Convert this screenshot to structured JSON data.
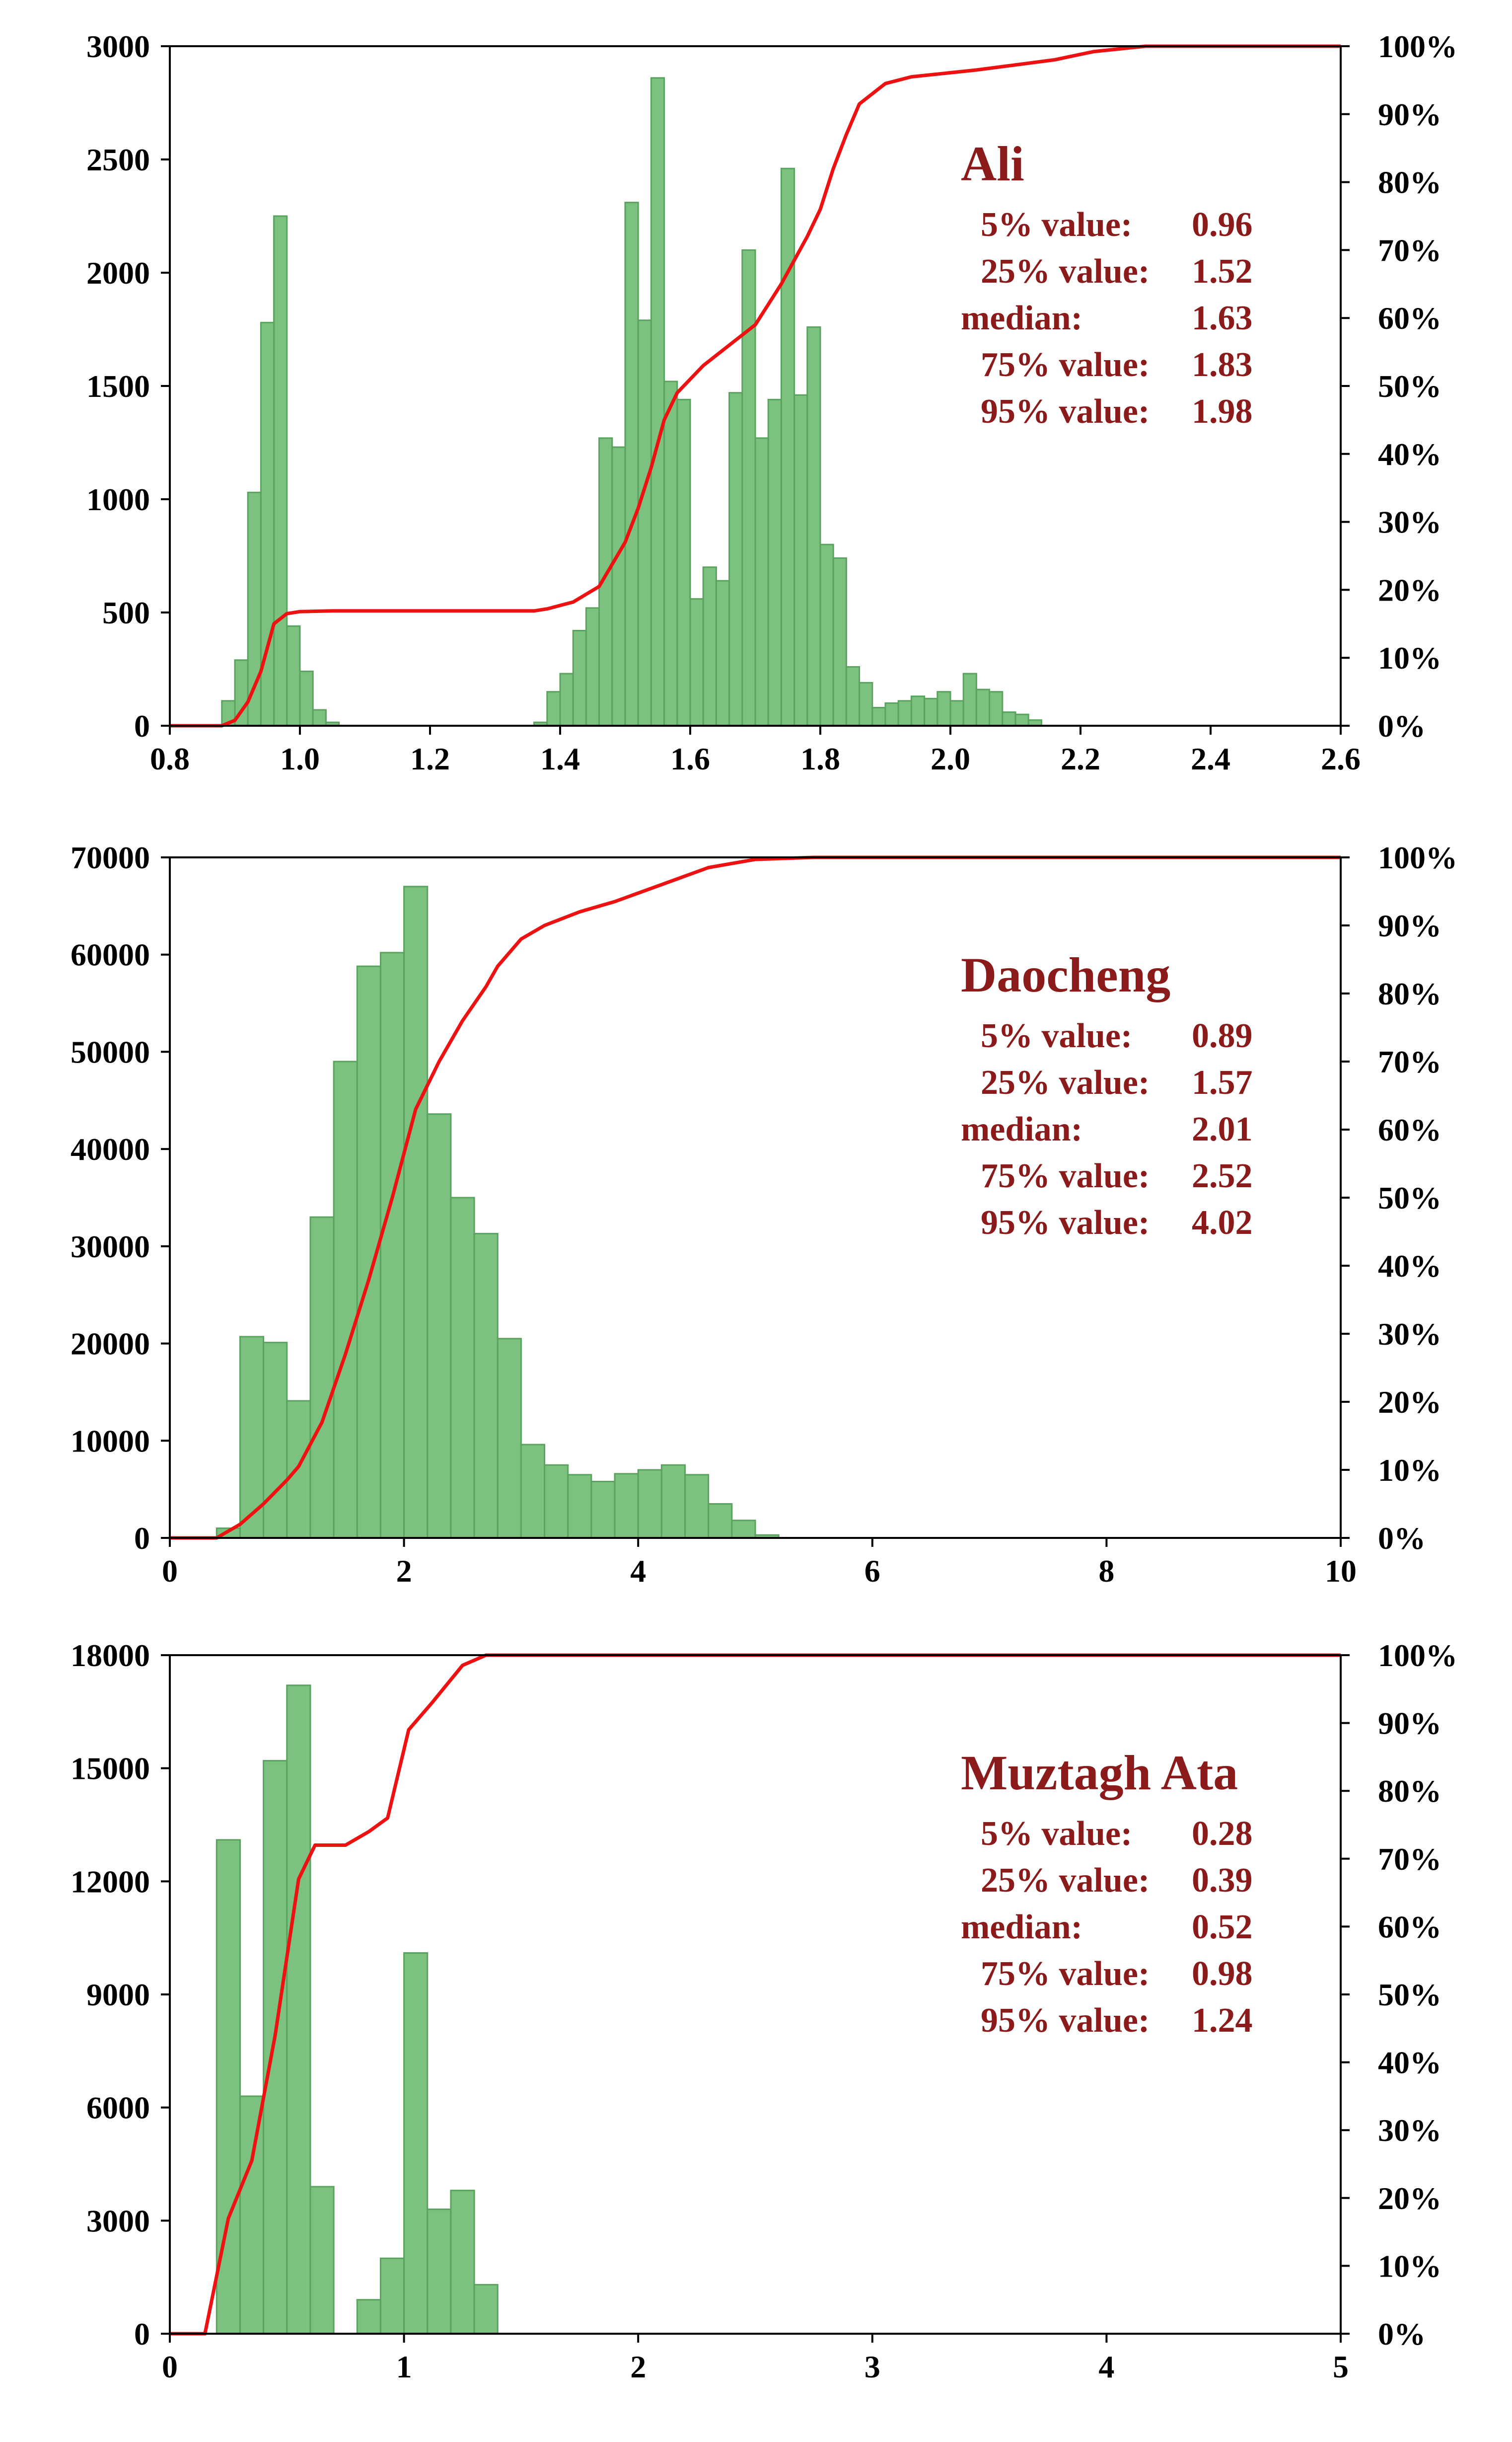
{
  "chart_data": [
    {
      "type": "bar",
      "title": "Ali",
      "stats": [
        {
          "label": "5% value:",
          "value": "0.96"
        },
        {
          "label": "25% value:",
          "value": "1.52"
        },
        {
          "label": "median:",
          "value": "1.63"
        },
        {
          "label": "75% value:",
          "value": "1.83"
        },
        {
          "label": "95% value:",
          "value": "1.98"
        }
      ],
      "xlim": [
        0.8,
        2.6
      ],
      "ylim": [
        0,
        3000
      ],
      "y2lim": [
        0,
        100
      ],
      "x_ticks": [
        "0.8",
        "1.0",
        "1.2",
        "1.4",
        "1.6",
        "1.8",
        "2.0",
        "2.2",
        "2.4",
        "2.6"
      ],
      "y_ticks": [
        "0",
        "500",
        "1000",
        "1500",
        "2000",
        "2500",
        "3000"
      ],
      "y2_ticks": [
        "0%",
        "10%",
        "20%",
        "30%",
        "40%",
        "50%",
        "60%",
        "70%",
        "80%",
        "90%",
        "100%"
      ],
      "bin_width": 0.02,
      "bins": [
        [
          0.88,
          110
        ],
        [
          0.9,
          290
        ],
        [
          0.92,
          1030
        ],
        [
          0.94,
          1780
        ],
        [
          0.96,
          2250
        ],
        [
          0.98,
          440
        ],
        [
          1.0,
          240
        ],
        [
          1.02,
          70
        ],
        [
          1.04,
          15
        ],
        [
          1.36,
          15
        ],
        [
          1.38,
          150
        ],
        [
          1.4,
          230
        ],
        [
          1.42,
          420
        ],
        [
          1.44,
          520
        ],
        [
          1.46,
          1270
        ],
        [
          1.48,
          1230
        ],
        [
          1.5,
          2310
        ],
        [
          1.52,
          1790
        ],
        [
          1.54,
          2860
        ],
        [
          1.56,
          1520
        ],
        [
          1.58,
          1440
        ],
        [
          1.6,
          560
        ],
        [
          1.62,
          700
        ],
        [
          1.64,
          640
        ],
        [
          1.66,
          1470
        ],
        [
          1.68,
          2100
        ],
        [
          1.7,
          1270
        ],
        [
          1.72,
          1440
        ],
        [
          1.74,
          2460
        ],
        [
          1.76,
          1460
        ],
        [
          1.78,
          1760
        ],
        [
          1.8,
          800
        ],
        [
          1.82,
          740
        ],
        [
          1.84,
          260
        ],
        [
          1.86,
          190
        ],
        [
          1.88,
          80
        ],
        [
          1.9,
          100
        ],
        [
          1.92,
          110
        ],
        [
          1.94,
          130
        ],
        [
          1.96,
          120
        ],
        [
          1.98,
          150
        ],
        [
          2.0,
          110
        ],
        [
          2.02,
          230
        ],
        [
          2.04,
          160
        ],
        [
          2.06,
          150
        ],
        [
          2.08,
          60
        ],
        [
          2.1,
          50
        ],
        [
          2.12,
          25
        ]
      ],
      "cumulative_percent": [
        [
          0.8,
          0
        ],
        [
          0.88,
          0
        ],
        [
          0.9,
          0.8
        ],
        [
          0.92,
          3.5
        ],
        [
          0.94,
          8
        ],
        [
          0.96,
          15
        ],
        [
          0.98,
          16.5
        ],
        [
          1.0,
          16.8
        ],
        [
          1.05,
          16.9
        ],
        [
          1.36,
          16.9
        ],
        [
          1.38,
          17.2
        ],
        [
          1.42,
          18.2
        ],
        [
          1.46,
          20.5
        ],
        [
          1.5,
          27
        ],
        [
          1.52,
          32
        ],
        [
          1.54,
          38
        ],
        [
          1.56,
          45
        ],
        [
          1.58,
          49
        ],
        [
          1.62,
          53
        ],
        [
          1.66,
          56
        ],
        [
          1.7,
          59
        ],
        [
          1.74,
          65
        ],
        [
          1.78,
          72
        ],
        [
          1.8,
          76
        ],
        [
          1.82,
          82
        ],
        [
          1.84,
          87
        ],
        [
          1.86,
          91.5
        ],
        [
          1.9,
          94.5
        ],
        [
          1.94,
          95.5
        ],
        [
          2.04,
          96.5
        ],
        [
          2.16,
          98
        ],
        [
          2.22,
          99.2
        ],
        [
          2.3,
          100
        ],
        [
          2.6,
          100
        ]
      ]
    },
    {
      "type": "bar",
      "title": "Daocheng",
      "stats": [
        {
          "label": "5% value:",
          "value": "0.89"
        },
        {
          "label": "25% value:",
          "value": "1.57"
        },
        {
          "label": "median:",
          "value": "2.01"
        },
        {
          "label": "75% value:",
          "value": "2.52"
        },
        {
          "label": "95% value:",
          "value": "4.02"
        }
      ],
      "xlim": [
        0,
        10
      ],
      "ylim": [
        0,
        70000
      ],
      "y2lim": [
        0,
        100
      ],
      "x_ticks": [
        "0",
        "2",
        "4",
        "6",
        "8",
        "10"
      ],
      "y_ticks": [
        "0",
        "10000",
        "20000",
        "30000",
        "40000",
        "50000",
        "60000",
        "70000"
      ],
      "y2_ticks": [
        "0%",
        "10%",
        "20%",
        "30%",
        "40%",
        "50%",
        "60%",
        "70%",
        "80%",
        "90%",
        "100%"
      ],
      "bin_width": 0.2,
      "bins": [
        [
          0.4,
          1000
        ],
        [
          0.6,
          20700
        ],
        [
          0.8,
          20100
        ],
        [
          1.0,
          14100
        ],
        [
          1.2,
          33000
        ],
        [
          1.4,
          49000
        ],
        [
          1.6,
          58800
        ],
        [
          1.8,
          60200
        ],
        [
          2.0,
          67000
        ],
        [
          2.2,
          43600
        ],
        [
          2.4,
          35000
        ],
        [
          2.6,
          31300
        ],
        [
          2.8,
          20500
        ],
        [
          3.0,
          9600
        ],
        [
          3.2,
          7500
        ],
        [
          3.4,
          6500
        ],
        [
          3.6,
          5800
        ],
        [
          3.8,
          6600
        ],
        [
          4.0,
          7000
        ],
        [
          4.2,
          7500
        ],
        [
          4.4,
          6500
        ],
        [
          4.6,
          3500
        ],
        [
          4.8,
          1800
        ],
        [
          5.0,
          300
        ]
      ],
      "cumulative_percent": [
        [
          0,
          0
        ],
        [
          0.4,
          0
        ],
        [
          0.6,
          2
        ],
        [
          0.8,
          5
        ],
        [
          1.0,
          8.5
        ],
        [
          1.1,
          10.5
        ],
        [
          1.3,
          17
        ],
        [
          1.5,
          27
        ],
        [
          1.7,
          38
        ],
        [
          1.9,
          50
        ],
        [
          2.1,
          63
        ],
        [
          2.3,
          70
        ],
        [
          2.5,
          76
        ],
        [
          2.7,
          81
        ],
        [
          2.8,
          84
        ],
        [
          3.0,
          88
        ],
        [
          3.2,
          90
        ],
        [
          3.5,
          92
        ],
        [
          3.8,
          93.5
        ],
        [
          4.2,
          96
        ],
        [
          4.6,
          98.5
        ],
        [
          5.0,
          99.7
        ],
        [
          5.5,
          100
        ],
        [
          10,
          100
        ]
      ]
    },
    {
      "type": "bar",
      "title": "Muztagh Ata",
      "stats": [
        {
          "label": "5% value:",
          "value": "0.28"
        },
        {
          "label": "25% value:",
          "value": "0.39"
        },
        {
          "label": "median:",
          "value": "0.52"
        },
        {
          "label": "75% value:",
          "value": "0.98"
        },
        {
          "label": "95% value:",
          "value": "1.24"
        }
      ],
      "xlim": [
        0,
        5
      ],
      "ylim": [
        0,
        18000
      ],
      "y2lim": [
        0,
        100
      ],
      "x_ticks": [
        "0",
        "1",
        "2",
        "3",
        "4",
        "5"
      ],
      "y_ticks": [
        "0",
        "3000",
        "6000",
        "9000",
        "12000",
        "15000",
        "18000"
      ],
      "y2_ticks": [
        "0%",
        "10%",
        "20%",
        "30%",
        "40%",
        "50%",
        "60%",
        "70%",
        "80%",
        "90%",
        "100%"
      ],
      "bin_width": 0.1,
      "bins": [
        [
          0.2,
          13100
        ],
        [
          0.3,
          6300
        ],
        [
          0.4,
          15200
        ],
        [
          0.5,
          17200
        ],
        [
          0.6,
          3900
        ],
        [
          0.8,
          900
        ],
        [
          0.9,
          2000
        ],
        [
          1.0,
          10100
        ],
        [
          1.1,
          3300
        ],
        [
          1.2,
          3800
        ],
        [
          1.3,
          1300
        ]
      ],
      "cumulative_percent": [
        [
          0,
          0
        ],
        [
          0.15,
          0
        ],
        [
          0.25,
          17
        ],
        [
          0.35,
          25.5
        ],
        [
          0.45,
          44
        ],
        [
          0.55,
          67
        ],
        [
          0.62,
          72
        ],
        [
          0.75,
          72
        ],
        [
          0.85,
          74
        ],
        [
          0.93,
          76
        ],
        [
          1.02,
          89
        ],
        [
          1.12,
          93
        ],
        [
          1.25,
          98.5
        ],
        [
          1.35,
          100
        ],
        [
          5,
          100
        ]
      ]
    }
  ]
}
